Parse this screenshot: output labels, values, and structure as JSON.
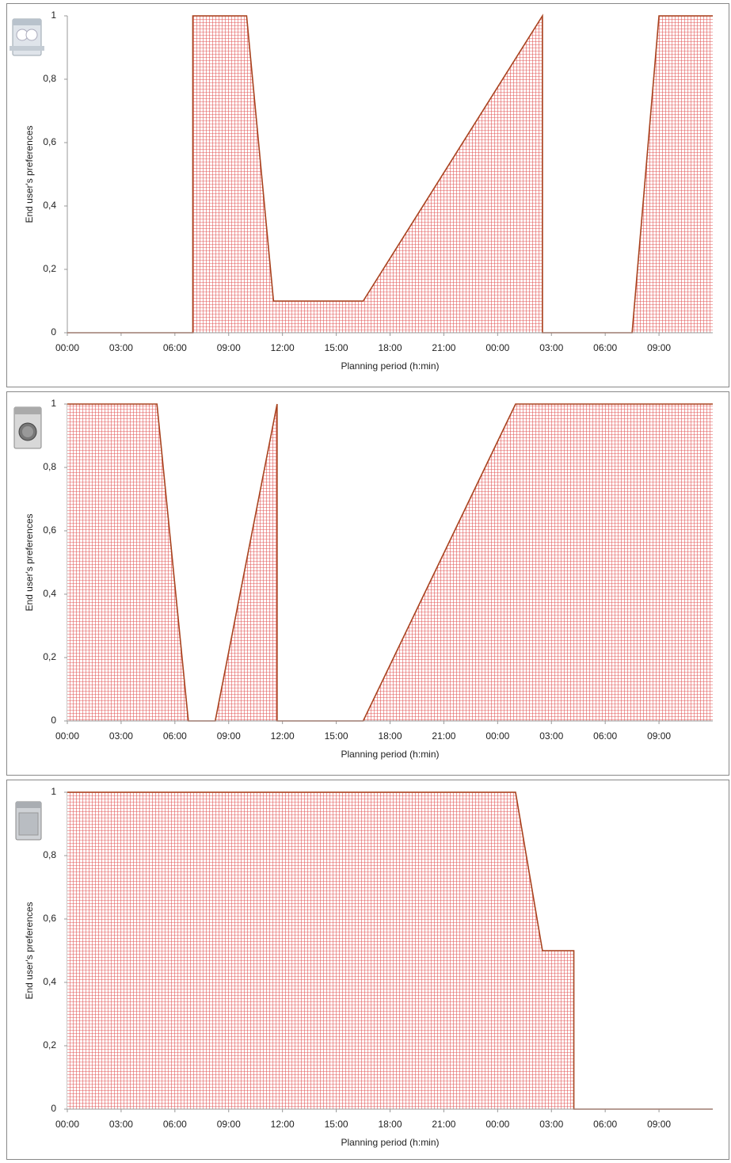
{
  "chart_data": [
    {
      "type": "area",
      "xlabel": "Planning period (h:min)",
      "ylabel": "End user's preferences",
      "x": [
        0,
        7,
        7,
        10,
        11.5,
        16.5,
        26.5,
        26.5,
        31.5,
        33,
        36
      ],
      "values": [
        0,
        0,
        1,
        1,
        0.1,
        0.1,
        1,
        0,
        0,
        1,
        1
      ],
      "color": "#e35a5a",
      "line_color": "#a8431f",
      "xlim": [
        0,
        36
      ],
      "ylim": [
        0,
        1
      ],
      "xticks": [
        {
          "value": 0,
          "label": "00:00"
        },
        {
          "value": 3,
          "label": "03:00"
        },
        {
          "value": 6,
          "label": "06:00"
        },
        {
          "value": 9,
          "label": "09:00"
        },
        {
          "value": 12,
          "label": "12:00"
        },
        {
          "value": 15,
          "label": "15:00"
        },
        {
          "value": 18,
          "label": "18:00"
        },
        {
          "value": 21,
          "label": "21:00"
        },
        {
          "value": 24,
          "label": "00:00"
        },
        {
          "value": 27,
          "label": "03:00"
        },
        {
          "value": 30,
          "label": "06:00"
        },
        {
          "value": 33,
          "label": "09:00"
        }
      ],
      "yticks": [
        0,
        {
          "value": 0.2,
          "label": "0,2"
        },
        {
          "value": 0.4,
          "label": "0,4"
        },
        {
          "value": 0.6,
          "label": "0,6"
        },
        {
          "value": 0.8,
          "label": "0,8"
        },
        1
      ]
    },
    {
      "type": "area",
      "xlabel": "Planning period (h:min)",
      "ylabel": "End user's preferences",
      "x": [
        0,
        5,
        6.75,
        8.25,
        11.7,
        11.7,
        16.5,
        25,
        36
      ],
      "values": [
        1,
        1,
        0,
        0,
        1,
        0,
        0,
        1,
        1
      ],
      "color": "#e35a5a",
      "line_color": "#a8431f",
      "xlim": [
        0,
        36
      ],
      "ylim": [
        0,
        1
      ],
      "xticks": [
        {
          "value": 0,
          "label": "00:00"
        },
        {
          "value": 3,
          "label": "03:00"
        },
        {
          "value": 6,
          "label": "06:00"
        },
        {
          "value": 9,
          "label": "09:00"
        },
        {
          "value": 12,
          "label": "12:00"
        },
        {
          "value": 15,
          "label": "15:00"
        },
        {
          "value": 18,
          "label": "18:00"
        },
        {
          "value": 21,
          "label": "21:00"
        },
        {
          "value": 24,
          "label": "00:00"
        },
        {
          "value": 27,
          "label": "03:00"
        },
        {
          "value": 30,
          "label": "06:00"
        },
        {
          "value": 33,
          "label": "09:00"
        }
      ],
      "yticks": [
        0,
        {
          "value": 0.2,
          "label": "0,2"
        },
        {
          "value": 0.4,
          "label": "0,4"
        },
        {
          "value": 0.6,
          "label": "0,6"
        },
        {
          "value": 0.8,
          "label": "0,8"
        },
        1
      ]
    },
    {
      "type": "area",
      "xlabel": "Planning period (h:min)",
      "ylabel": "End user's preferences",
      "x": [
        0,
        25,
        26.5,
        28.25,
        28.25,
        36
      ],
      "values": [
        1,
        1,
        0.5,
        0.5,
        0,
        0
      ],
      "color": "#e35a5a",
      "line_color": "#a8431f",
      "xlim": [
        0,
        36
      ],
      "ylim": [
        0,
        1
      ],
      "xticks": [
        {
          "value": 0,
          "label": "00:00"
        },
        {
          "value": 3,
          "label": "03:00"
        },
        {
          "value": 6,
          "label": "06:00"
        },
        {
          "value": 9,
          "label": "09:00"
        },
        {
          "value": 12,
          "label": "12:00"
        },
        {
          "value": 15,
          "label": "15:00"
        },
        {
          "value": 18,
          "label": "18:00"
        },
        {
          "value": 21,
          "label": "21:00"
        },
        {
          "value": 24,
          "label": "00:00"
        },
        {
          "value": 27,
          "label": "03:00"
        },
        {
          "value": 30,
          "label": "06:00"
        },
        {
          "value": 33,
          "label": "09:00"
        }
      ],
      "yticks": [
        0,
        {
          "value": 0.2,
          "label": "0,2"
        },
        {
          "value": 0.4,
          "label": "0,4"
        },
        {
          "value": 0.6,
          "label": "0,6"
        },
        {
          "value": 0.8,
          "label": "0,8"
        },
        1
      ]
    }
  ]
}
